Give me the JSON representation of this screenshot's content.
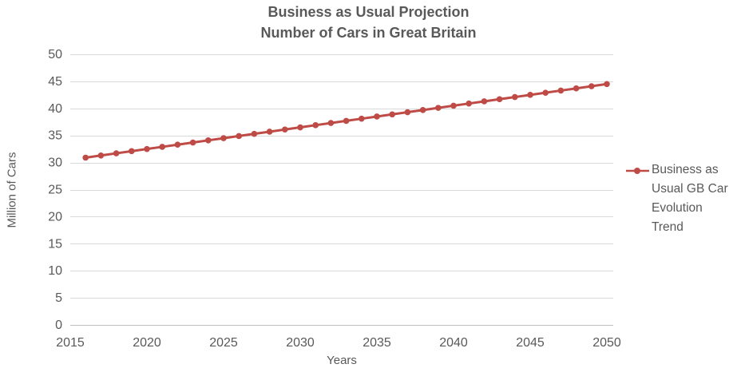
{
  "chart_data": {
    "type": "line",
    "title": "Business as Usual Projection",
    "subtitle": "Number of Cars in Great Britain",
    "xlabel": "Years",
    "ylabel": "Million of Cars",
    "legend_position": "right",
    "grid": "horizontal-only",
    "background": "#ffffff",
    "xlim": [
      2015,
      2050
    ],
    "ylim": [
      0,
      50
    ],
    "xticks": [
      2015,
      2020,
      2025,
      2030,
      2035,
      2040,
      2045,
      2050
    ],
    "yticks": [
      0,
      5,
      10,
      15,
      20,
      25,
      30,
      35,
      40,
      45,
      50
    ],
    "x": [
      2016,
      2017,
      2018,
      2019,
      2020,
      2021,
      2022,
      2023,
      2024,
      2025,
      2026,
      2027,
      2028,
      2029,
      2030,
      2031,
      2032,
      2033,
      2034,
      2035,
      2036,
      2037,
      2038,
      2039,
      2040,
      2041,
      2042,
      2043,
      2044,
      2045,
      2046,
      2047,
      2048,
      2049,
      2050
    ],
    "series": [
      {
        "name": "Business as Usual GB Car Evolution Trend",
        "color": "#bf4b47",
        "marker": "circle",
        "line_width": 3,
        "values": [
          30.9,
          31.3,
          31.7,
          32.1,
          32.5,
          32.9,
          33.3,
          33.7,
          34.1,
          34.5,
          34.9,
          35.3,
          35.7,
          36.1,
          36.5,
          36.9,
          37.3,
          37.7,
          38.1,
          38.5,
          38.9,
          39.3,
          39.7,
          40.1,
          40.5,
          40.9,
          41.3,
          41.7,
          42.1,
          42.5,
          42.9,
          43.3,
          43.7,
          44.1,
          44.5
        ]
      }
    ],
    "colors": {
      "title_text": "#595959",
      "axis_text": "#595959",
      "gridline": "#d9d9d9",
      "axis_line": "#bfbfbf"
    }
  }
}
